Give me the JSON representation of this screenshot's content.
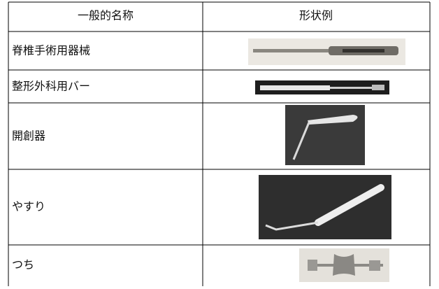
{
  "table": {
    "header": [
      "一般的名称",
      "形状例"
    ],
    "rows": [
      [
        "脊椎手術用器械"
      ],
      [
        "整形外科用バー"
      ],
      [
        "開創器"
      ],
      [
        "やすり"
      ],
      [
        "つち"
      ]
    ]
  }
}
